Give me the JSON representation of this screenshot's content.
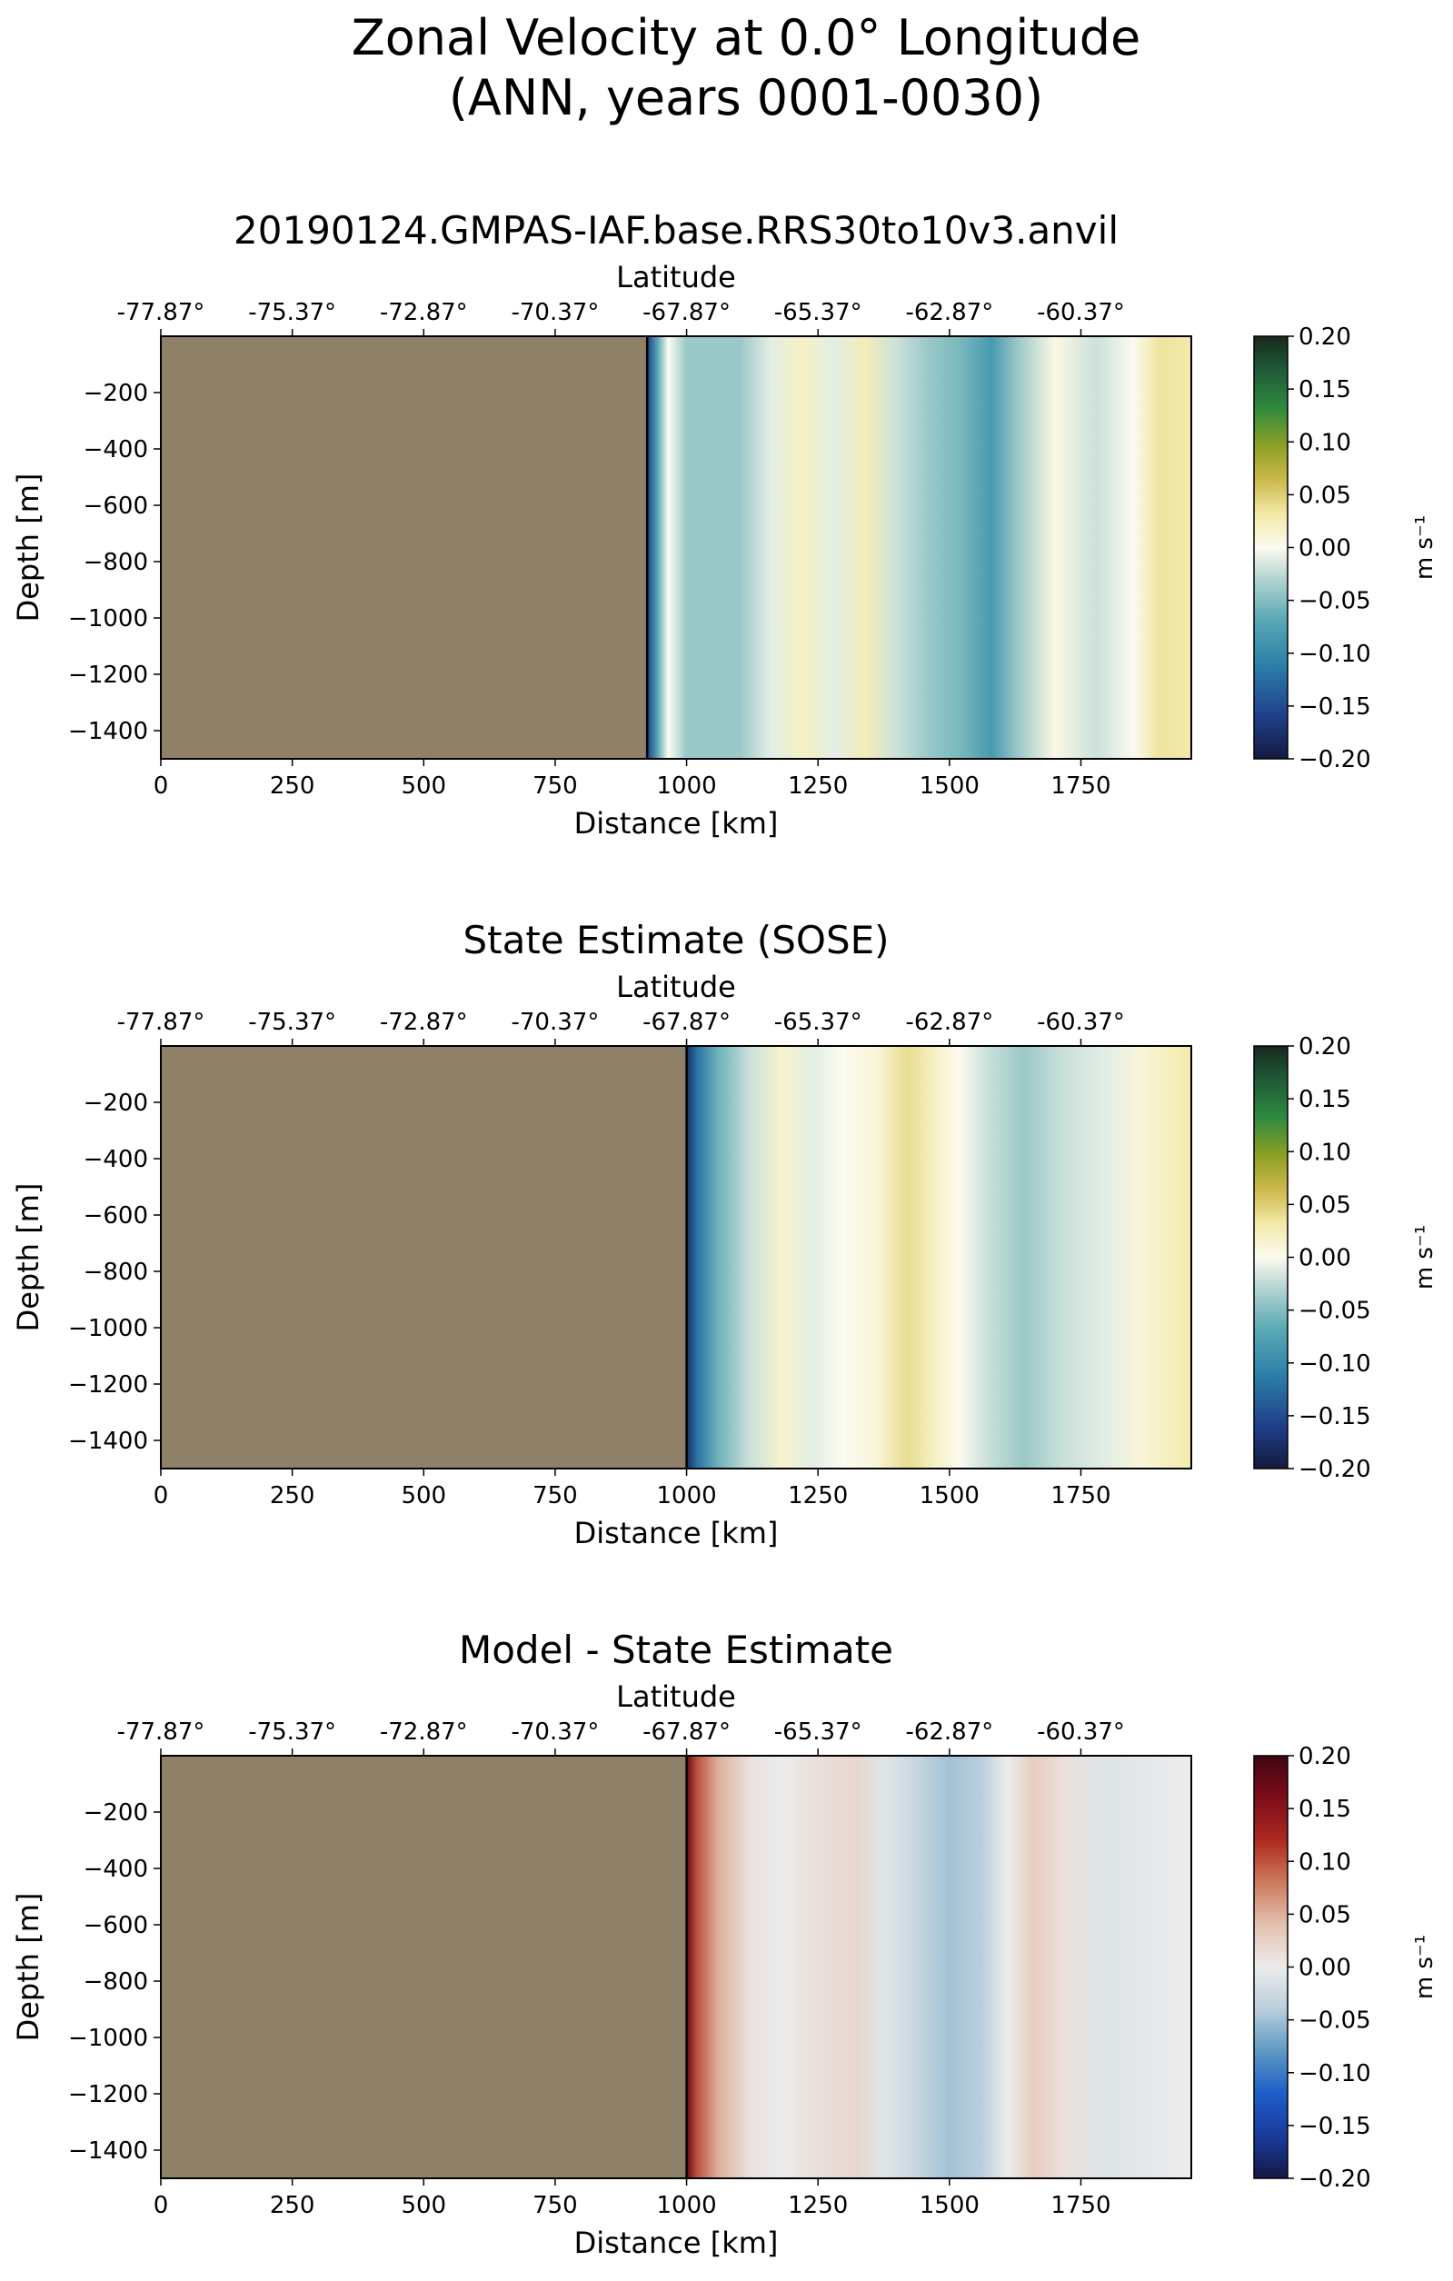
{
  "figure": {
    "title_line1": "Zonal Velocity at 0.0° Longitude",
    "title_line2": "(ANN, years 0001-0030)"
  },
  "chart_data": [
    {
      "type": "heatmap",
      "title": "20190124.GMPAS-IAF.base.RRS30to10v3.anvil",
      "xlabel": "Distance [km]",
      "ylabel": "Depth [m]",
      "top_xlabel": "Latitude",
      "xlim": [
        0,
        1960
      ],
      "ylim": [
        -1500,
        0
      ],
      "x_ticks": [
        0,
        250,
        500,
        750,
        1000,
        1250,
        1500,
        1750
      ],
      "y_ticks": [
        -200,
        -400,
        -600,
        -800,
        -1000,
        -1200,
        -1400
      ],
      "top_tick_labels": [
        "-77.87°",
        "-75.37°",
        "-72.87°",
        "-70.37°",
        "-67.87°",
        "-65.37°",
        "-62.87°",
        "-60.37°"
      ],
      "colorbar_label": "m s⁻¹",
      "colorbar_ticks": [
        "0.20",
        "0.15",
        "0.10",
        "0.05",
        "0.00",
        "−0.05",
        "−0.10",
        "−0.15",
        "−0.20"
      ],
      "colormap": "blue-teal-white-yellow-green",
      "clim": [
        -0.2,
        0.2
      ],
      "land_color": "#8f8068",
      "land_boundary_km": 925,
      "velocity_profile": [
        {
          "x": 925,
          "v": -0.16
        },
        {
          "x": 945,
          "v": -0.07
        },
        {
          "x": 965,
          "v": 0.0
        },
        {
          "x": 1000,
          "v": -0.04
        },
        {
          "x": 1100,
          "v": -0.04
        },
        {
          "x": 1160,
          "v": -0.01
        },
        {
          "x": 1220,
          "v": 0.02
        },
        {
          "x": 1280,
          "v": -0.01
        },
        {
          "x": 1340,
          "v": 0.025
        },
        {
          "x": 1400,
          "v": -0.02
        },
        {
          "x": 1460,
          "v": -0.04
        },
        {
          "x": 1520,
          "v": -0.055
        },
        {
          "x": 1580,
          "v": -0.085
        },
        {
          "x": 1630,
          "v": -0.04
        },
        {
          "x": 1700,
          "v": 0.005
        },
        {
          "x": 1780,
          "v": -0.02
        },
        {
          "x": 1850,
          "v": 0.0
        },
        {
          "x": 1900,
          "v": 0.035
        },
        {
          "x": 1960,
          "v": 0.03
        }
      ]
    },
    {
      "type": "heatmap",
      "title": "State Estimate (SOSE)",
      "xlabel": "Distance [km]",
      "ylabel": "Depth [m]",
      "top_xlabel": "Latitude",
      "xlim": [
        0,
        1960
      ],
      "ylim": [
        -1500,
        0
      ],
      "x_ticks": [
        0,
        250,
        500,
        750,
        1000,
        1250,
        1500,
        1750
      ],
      "y_ticks": [
        -200,
        -400,
        -600,
        -800,
        -1000,
        -1200,
        -1400
      ],
      "top_tick_labels": [
        "-77.87°",
        "-75.37°",
        "-72.87°",
        "-70.37°",
        "-67.87°",
        "-65.37°",
        "-62.87°",
        "-60.37°"
      ],
      "colorbar_label": "m s⁻¹",
      "colorbar_ticks": [
        "0.20",
        "0.15",
        "0.10",
        "0.05",
        "0.00",
        "−0.05",
        "−0.10",
        "−0.15",
        "−0.20"
      ],
      "colormap": "blue-teal-white-yellow-green",
      "clim": [
        -0.2,
        0.2
      ],
      "land_color": "#8f8068",
      "land_boundary_km": 1000,
      "velocity_profile": [
        {
          "x": 1000,
          "v": -0.18
        },
        {
          "x": 1020,
          "v": -0.12
        },
        {
          "x": 1060,
          "v": -0.06
        },
        {
          "x": 1120,
          "v": -0.02
        },
        {
          "x": 1180,
          "v": 0.015
        },
        {
          "x": 1240,
          "v": -0.01
        },
        {
          "x": 1300,
          "v": 0.0
        },
        {
          "x": 1360,
          "v": 0.01
        },
        {
          "x": 1420,
          "v": 0.04
        },
        {
          "x": 1470,
          "v": 0.02
        },
        {
          "x": 1520,
          "v": 0.0
        },
        {
          "x": 1570,
          "v": -0.02
        },
        {
          "x": 1640,
          "v": -0.04
        },
        {
          "x": 1720,
          "v": -0.02
        },
        {
          "x": 1800,
          "v": -0.01
        },
        {
          "x": 1860,
          "v": 0.01
        },
        {
          "x": 1960,
          "v": 0.03
        }
      ]
    },
    {
      "type": "heatmap",
      "title": "Model - State Estimate",
      "xlabel": "Distance [km]",
      "ylabel": "Depth [m]",
      "top_xlabel": "Latitude",
      "xlim": [
        0,
        1960
      ],
      "ylim": [
        -1500,
        0
      ],
      "x_ticks": [
        0,
        250,
        500,
        750,
        1000,
        1250,
        1500,
        1750
      ],
      "y_ticks": [
        -200,
        -400,
        -600,
        -800,
        -1000,
        -1200,
        -1400
      ],
      "top_tick_labels": [
        "-77.87°",
        "-75.37°",
        "-72.87°",
        "-70.37°",
        "-67.87°",
        "-65.37°",
        "-62.87°",
        "-60.37°"
      ],
      "colorbar_label": "m s⁻¹",
      "colorbar_ticks": [
        "0.20",
        "0.15",
        "0.10",
        "0.05",
        "0.00",
        "−0.05",
        "−0.10",
        "−0.15",
        "−0.20"
      ],
      "colormap": "blue-white-red",
      "clim": [
        -0.2,
        0.2
      ],
      "land_color": "#8f8068",
      "land_boundary_km": 1000,
      "velocity_profile": [
        {
          "x": 1000,
          "v": 0.18
        },
        {
          "x": 1020,
          "v": 0.1
        },
        {
          "x": 1060,
          "v": 0.05
        },
        {
          "x": 1120,
          "v": 0.01
        },
        {
          "x": 1180,
          "v": 0.0
        },
        {
          "x": 1240,
          "v": 0.01
        },
        {
          "x": 1320,
          "v": 0.02
        },
        {
          "x": 1380,
          "v": -0.01
        },
        {
          "x": 1440,
          "v": -0.03
        },
        {
          "x": 1500,
          "v": -0.05
        },
        {
          "x": 1560,
          "v": -0.04
        },
        {
          "x": 1610,
          "v": 0.0
        },
        {
          "x": 1660,
          "v": 0.03
        },
        {
          "x": 1720,
          "v": 0.01
        },
        {
          "x": 1800,
          "v": -0.01
        },
        {
          "x": 1960,
          "v": 0.0
        }
      ]
    }
  ]
}
